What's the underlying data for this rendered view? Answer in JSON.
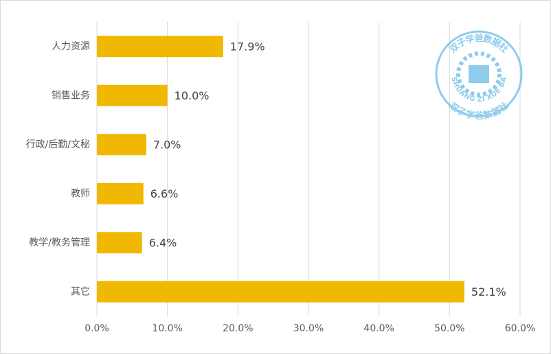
{
  "chart_data": {
    "type": "bar",
    "orientation": "horizontal",
    "categories": [
      "人力资源",
      "销售业务",
      "行政/后勤/文秘",
      "教师",
      "教学/教务管理",
      "其它"
    ],
    "values": [
      17.9,
      10.0,
      7.0,
      6.6,
      6.4,
      52.1
    ],
    "value_labels": [
      "17.9%",
      "10.0%",
      "7.0%",
      "6.6%",
      "6.4%",
      "52.1%"
    ],
    "color": "#f0b800",
    "xlim": [
      0,
      60
    ],
    "xticks": [
      {
        "value": 0,
        "label": "0.0%"
      },
      {
        "value": 10,
        "label": "10.0%"
      },
      {
        "value": 20,
        "label": "20.0%"
      },
      {
        "value": 30,
        "label": "30.0%"
      },
      {
        "value": 40,
        "label": "40.0%"
      },
      {
        "value": 50,
        "label": "50.0%"
      },
      {
        "value": 60,
        "label": "60.0%"
      }
    ],
    "grid": true,
    "watermark": {
      "top": "双子学爸数据社",
      "middle": "SHUANG ZI XUE BA",
      "bottom": "双子学爸数据社"
    }
  }
}
